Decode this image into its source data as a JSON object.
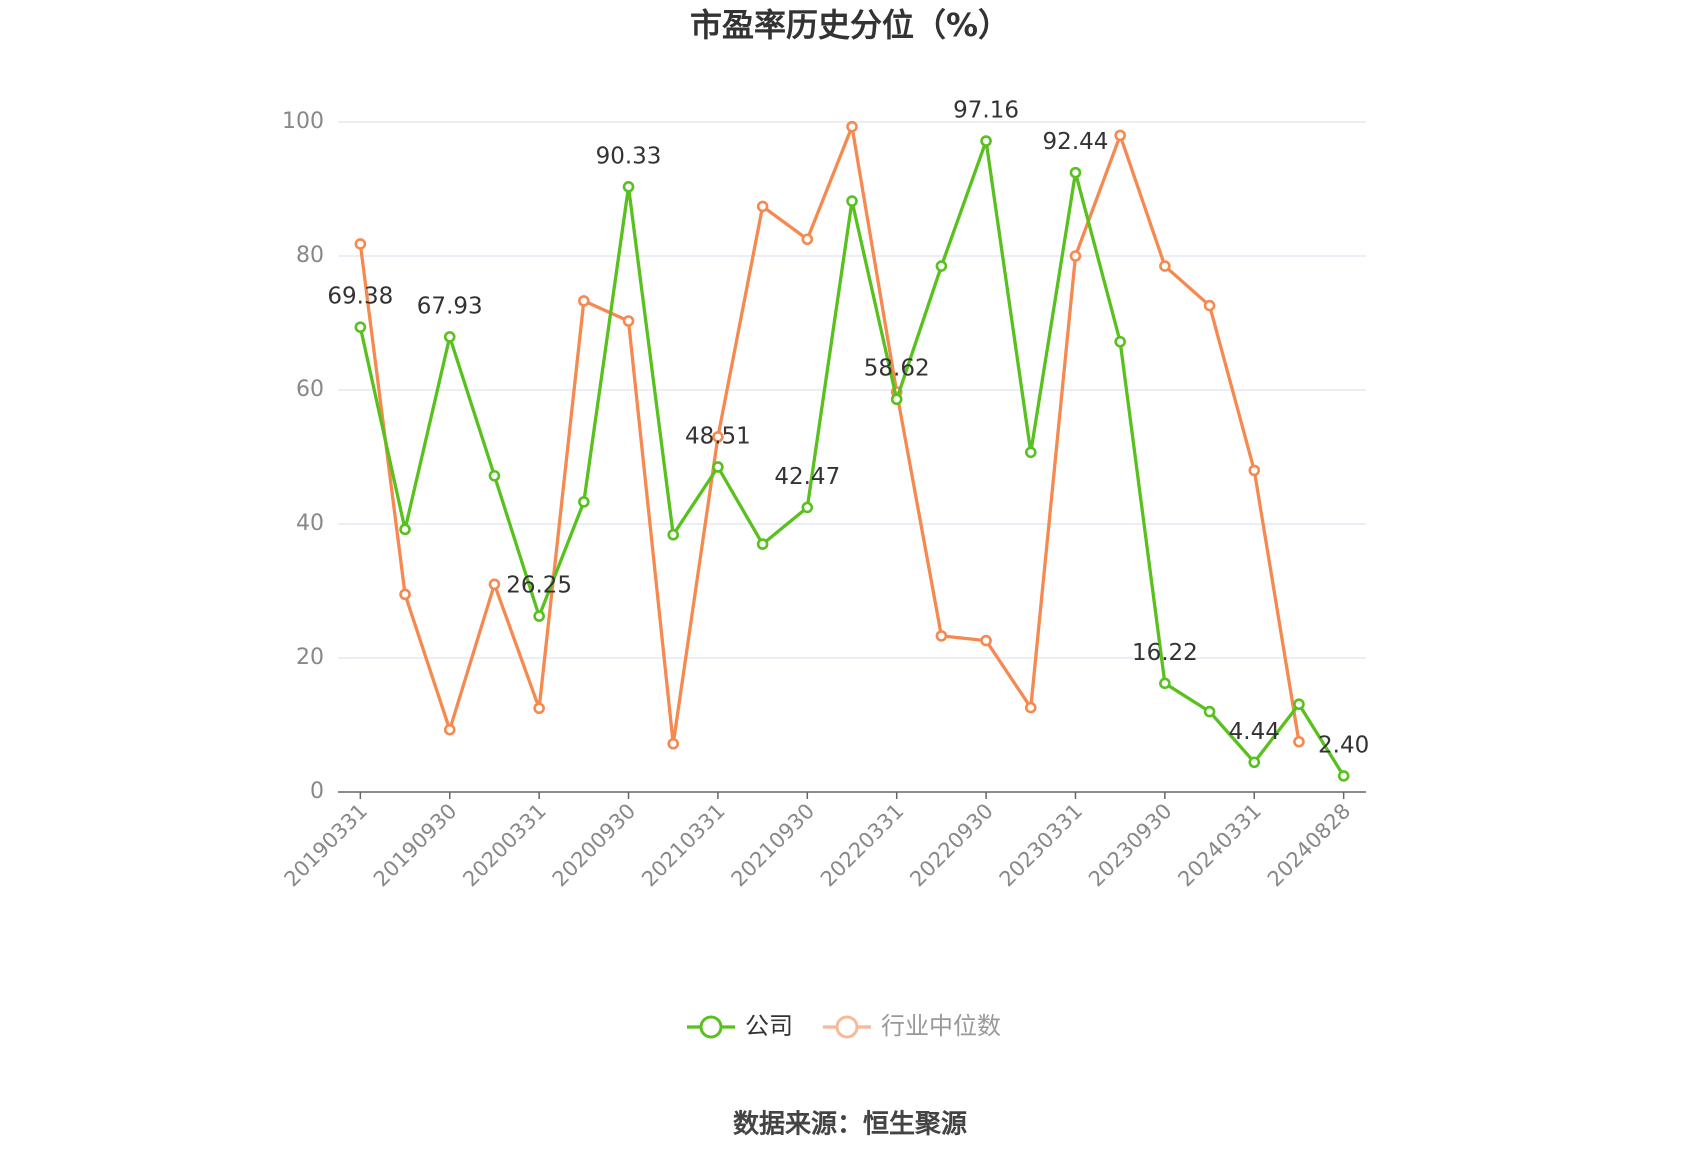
{
  "chart_data": {
    "type": "line",
    "title": "市盈率历史分位（%）",
    "categories": [
      "20190331",
      null,
      "20190930",
      null,
      "20200331",
      null,
      "20200930",
      null,
      "20210331",
      null,
      "20210930",
      null,
      "20220331",
      null,
      "20220930",
      null,
      "20230331",
      null,
      "20230930",
      null,
      "20240331",
      null,
      "20240828"
    ],
    "series": [
      {
        "name": "公司",
        "color": "#58c11e",
        "values": [
          69.38,
          39.2,
          67.93,
          47.2,
          26.25,
          43.3,
          90.33,
          38.4,
          48.51,
          37.0,
          42.47,
          88.2,
          58.62,
          78.5,
          97.16,
          50.7,
          92.44,
          67.2,
          16.22,
          12.0,
          4.44,
          13.1,
          2.4
        ],
        "value_labels": [
          "69.38",
          null,
          "67.93",
          null,
          "26.25",
          null,
          "90.33",
          null,
          "48.51",
          null,
          "42.47",
          null,
          "58.62",
          null,
          "97.16",
          null,
          "92.44",
          null,
          "16.22",
          null,
          "4.44",
          null,
          "2.40"
        ]
      },
      {
        "name": "行业中位数",
        "color": "#f5894f",
        "values": [
          81.8,
          29.5,
          9.3,
          31.0,
          12.5,
          73.3,
          70.3,
          7.2,
          53.0,
          87.4,
          82.5,
          99.3,
          59.7,
          23.3,
          22.6,
          12.6,
          80.0,
          98.0,
          78.5,
          72.6,
          48.0,
          7.5,
          null
        ]
      }
    ],
    "ylim": [
      0,
      100
    ],
    "yticks": [
      0,
      20,
      40,
      60,
      80,
      100
    ],
    "grid": true,
    "legend": "bottom",
    "source": "数据来源：恒生聚源"
  }
}
